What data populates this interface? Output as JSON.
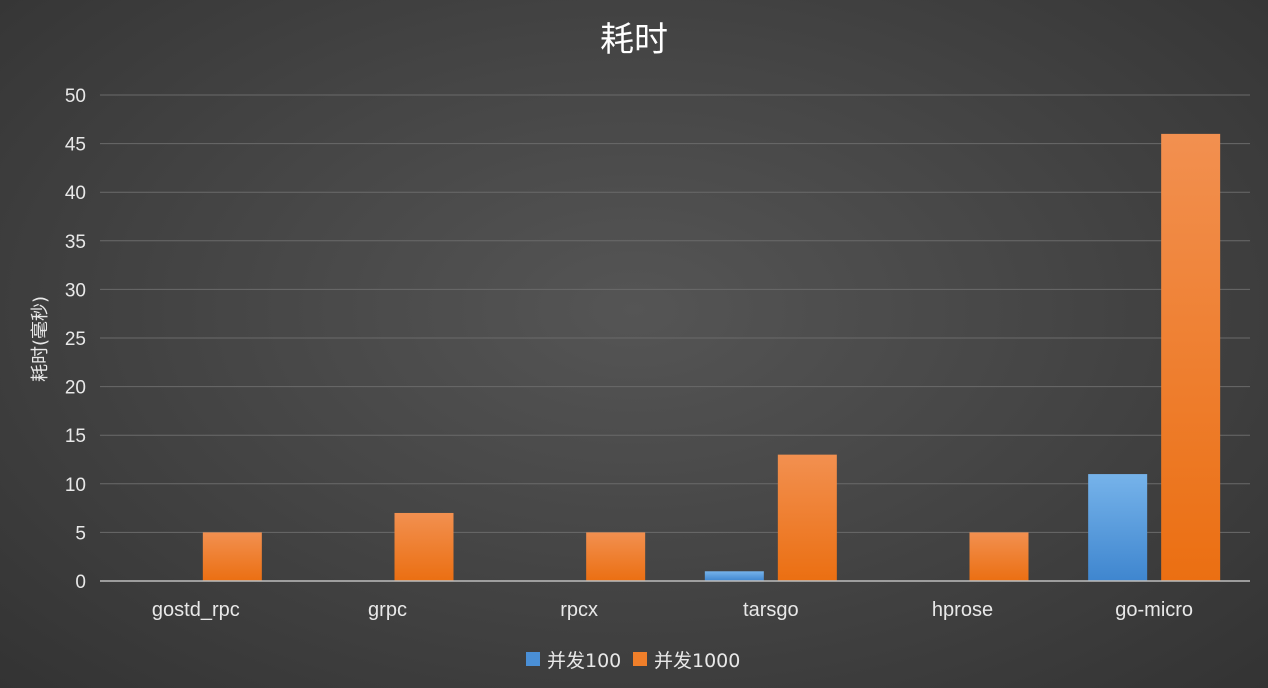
{
  "chart_data": {
    "type": "bar",
    "title": "耗时",
    "ylabel": "耗时(毫秒)",
    "xlabel": "",
    "ylim": [
      0,
      50
    ],
    "yticks": [
      0,
      5,
      10,
      15,
      20,
      25,
      30,
      35,
      40,
      45,
      50
    ],
    "grid": true,
    "legend_position": "bottom",
    "categories": [
      "gostd_rpc",
      "grpc",
      "rpcx",
      "tarsgo",
      "hprose",
      "go-micro"
    ],
    "series": [
      {
        "name": "并发100",
        "values": [
          0,
          0,
          0,
          1,
          0,
          11
        ],
        "color": "#4a8fd6"
      },
      {
        "name": "并发1000",
        "values": [
          5,
          7,
          5,
          13,
          5,
          46
        ],
        "color": "#f07f2a"
      }
    ]
  }
}
